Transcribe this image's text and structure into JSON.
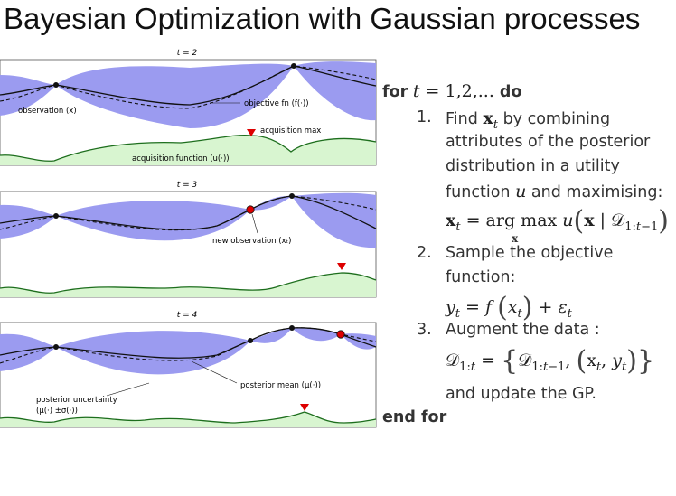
{
  "title": "Bayesian Optimization with Gaussian processes",
  "panels": [
    {
      "t_label": "t = 2",
      "annotations": {
        "objective": "objective fn (f(·))",
        "observation": "observation (x)",
        "acq_max": "acquisition max",
        "acq_fn": "acquisition function (u(·))"
      }
    },
    {
      "t_label": "t = 3",
      "annotations": {
        "new_observation": "new observation (xₜ)"
      }
    },
    {
      "t_label": "t = 4",
      "annotations": {
        "posterior_mean": "posterior mean (μ(·))",
        "uncertainty_1": "posterior uncertainty",
        "uncertainty_2": "(μ(·) ±σ(·))"
      }
    }
  ],
  "algorithm": {
    "for_kw": "for",
    "for_range": "= 1,2,... ",
    "do_kw": "do",
    "end_kw": "end for",
    "steps": [
      {
        "num": "1.",
        "lines": [
          "Find",
          "by combining",
          "attributes of the posterior",
          "distribution in a utility",
          "function",
          "and maximising:"
        ]
      },
      {
        "num": "2.",
        "lines": [
          "Sample the objective",
          "function:"
        ]
      },
      {
        "num": "3.",
        "lines": [
          "Augment the data :",
          "and update the GP."
        ]
      }
    ]
  },
  "colors": {
    "band": "#9b9bf0",
    "mean": "#111111",
    "acq_fill": "#d8f5d0",
    "acq_line": "#1d6e1d",
    "marker": "#dd0000"
  }
}
